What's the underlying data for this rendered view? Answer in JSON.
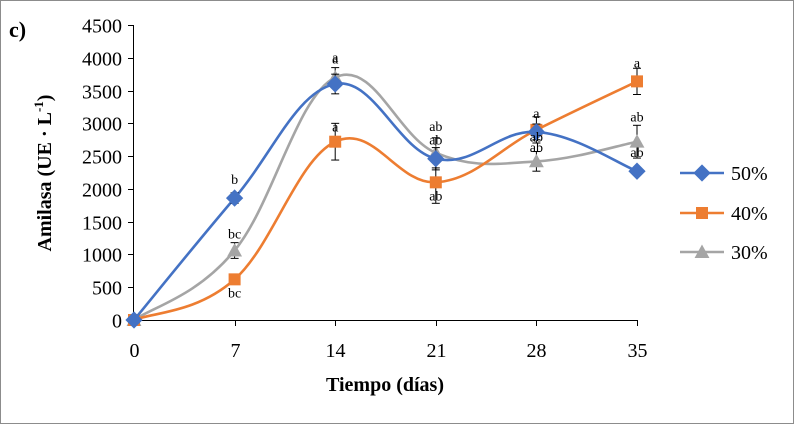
{
  "chart_data": {
    "type": "line",
    "panel_label": "c)",
    "title": "",
    "xlabel": "Tiempo (días)",
    "ylabel_main": "Amilasa (UE · L",
    "ylabel_sup": "-1",
    "ylabel_close": ")",
    "x": [
      0,
      7,
      14,
      21,
      28,
      35
    ],
    "x_tick_labels": [
      "0",
      "7",
      "14",
      "21",
      "28",
      "35"
    ],
    "ylim": [
      0,
      4500
    ],
    "y_ticks": [
      0,
      500,
      1000,
      1500,
      2000,
      2500,
      3000,
      3500,
      4000,
      4500
    ],
    "grid": false,
    "legend_position": "right",
    "series": [
      {
        "name": "50%",
        "color": "#4472C4",
        "marker": "diamond",
        "values": [
          0,
          1860,
          3600,
          2460,
          2870,
          2270
        ],
        "errors": [
          0,
          80,
          150,
          170,
          120,
          60
        ],
        "labels": [
          "",
          "b",
          "a",
          "ab",
          "a",
          "ab"
        ]
      },
      {
        "name": "40%",
        "color": "#ED7D31",
        "marker": "square",
        "values": [
          0,
          620,
          2720,
          2100,
          2900,
          3640
        ],
        "errors": [
          0,
          40,
          280,
          320,
          200,
          200
        ],
        "labels": [
          "",
          "bc",
          "a",
          "ab",
          "ab",
          "a"
        ]
      },
      {
        "name": "30%",
        "color": "#A5A5A5",
        "marker": "triangle",
        "values": [
          0,
          1060,
          3700,
          2550,
          2420,
          2720
        ],
        "errors": [
          0,
          120,
          150,
          230,
          150,
          250
        ],
        "labels": [
          "",
          "bc",
          "a",
          "ab",
          "ab",
          "ab"
        ]
      }
    ]
  }
}
